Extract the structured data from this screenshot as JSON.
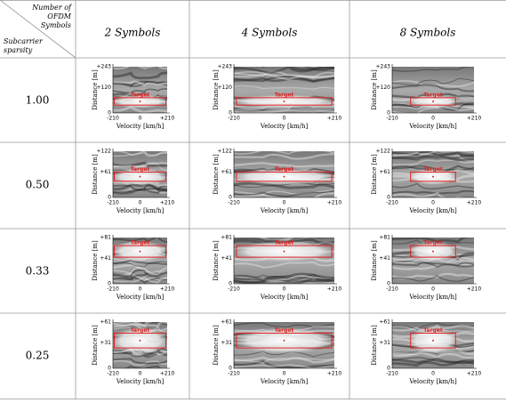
{
  "header": {
    "corner_top": [
      "Number of",
      "OFDM",
      "Symbols"
    ],
    "corner_bottom": [
      "Subcarrier",
      "sparsity"
    ],
    "columns": [
      "2 Symbols",
      "4 Symbols",
      "8 Symbols"
    ]
  },
  "plot": {
    "y_label": "Distance [m]",
    "x_label": "Velocity [km/h]",
    "x_ticks": [
      "-210",
      "0",
      "+210"
    ],
    "target": "Target"
  },
  "rows": [
    {
      "label": "1.00",
      "y_ticks": [
        "+243",
        "+120",
        "0"
      ]
    },
    {
      "label": "0.50",
      "y_ticks": [
        "+122",
        "+61",
        "0"
      ]
    },
    {
      "label": "0.33",
      "y_ticks": [
        "+81",
        "+41",
        "0"
      ]
    },
    {
      "label": "0.25",
      "y_ticks": [
        "+61",
        "+31",
        "0"
      ]
    }
  ]
}
